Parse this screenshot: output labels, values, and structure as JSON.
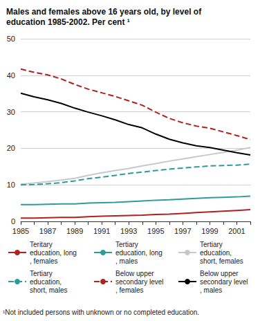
{
  "chart_data": {
    "type": "line",
    "title": "Males and females above 16 years old, by level of education 1985-2002. Per cent ¹",
    "footnote": "¹Not included persons with unknown or no completed education.",
    "categories": [
      "1985",
      null,
      "1987",
      null,
      "1989",
      null,
      "1991",
      null,
      "1993",
      null,
      "1995",
      null,
      "1997",
      null,
      "1999",
      null,
      "2001",
      null
    ],
    "ylim": [
      0,
      50
    ],
    "yticks": [
      0,
      10,
      20,
      30,
      40,
      50
    ],
    "grid": true,
    "series": [
      {
        "name": "Teritary education, long, females",
        "color": "#b0201e",
        "line_style": "solid",
        "marker": "none",
        "values": [
          0.9,
          0.9,
          1.0,
          1.1,
          1.1,
          1.3,
          1.4,
          1.5,
          1.6,
          1.7,
          1.9,
          2.0,
          2.2,
          2.4,
          2.6,
          2.8,
          3.0,
          3.2
        ]
      },
      {
        "name": "Tertiary education, long, males",
        "color": "#2a9d9b",
        "line_style": "solid",
        "marker": "none",
        "values": [
          4.6,
          4.6,
          4.7,
          4.8,
          4.8,
          5.0,
          5.1,
          5.2,
          5.4,
          5.6,
          5.8,
          5.9,
          6.1,
          6.3,
          6.5,
          6.6,
          6.7,
          6.9
        ]
      },
      {
        "name": "Tertiary education, short, females",
        "color": "#c8c8c8",
        "line_style": "solid",
        "marker": "none",
        "values": [
          10.2,
          10.5,
          10.9,
          11.3,
          11.8,
          12.6,
          13.3,
          13.9,
          14.5,
          15.2,
          15.8,
          16.5,
          17.1,
          17.7,
          18.3,
          18.9,
          19.5,
          20.2
        ]
      },
      {
        "name": "Tertiary education, short, males",
        "color": "#2a9d9b",
        "line_style": "dashed",
        "marker": "none",
        "values": [
          10.0,
          10.1,
          10.3,
          10.6,
          11.1,
          11.7,
          12.1,
          12.6,
          13.1,
          13.5,
          13.9,
          14.3,
          14.6,
          14.9,
          15.2,
          15.3,
          15.4,
          15.7
        ]
      },
      {
        "name": "Below upper secondary level, females",
        "color": "#b0201e",
        "line_style": "dashed",
        "marker": "none",
        "values": [
          41.7,
          40.8,
          40.1,
          39.0,
          37.5,
          36.2,
          35.2,
          34.2,
          33.0,
          31.8,
          29.9,
          28.2,
          27.0,
          26.1,
          25.5,
          24.5,
          23.5,
          22.4
        ]
      },
      {
        "name": "Below upper secondary level, males",
        "color": "#000000",
        "line_style": "solid",
        "marker": "none",
        "values": [
          35.1,
          34.1,
          33.3,
          32.3,
          31.0,
          29.9,
          28.9,
          27.8,
          26.5,
          25.6,
          23.9,
          22.5,
          21.5,
          20.7,
          20.2,
          19.5,
          18.8,
          18.2
        ]
      }
    ]
  }
}
